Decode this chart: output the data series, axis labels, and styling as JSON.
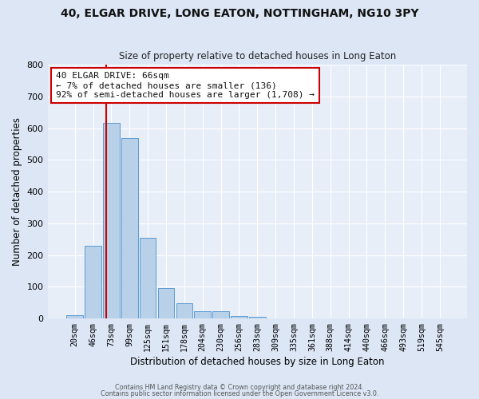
{
  "title": "40, ELGAR DRIVE, LONG EATON, NOTTINGHAM, NG10 3PY",
  "subtitle": "Size of property relative to detached houses in Long Eaton",
  "xlabel": "Distribution of detached houses by size in Long Eaton",
  "ylabel": "Number of detached properties",
  "bar_labels": [
    "20sqm",
    "46sqm",
    "73sqm",
    "99sqm",
    "125sqm",
    "151sqm",
    "178sqm",
    "204sqm",
    "230sqm",
    "256sqm",
    "283sqm",
    "309sqm",
    "335sqm",
    "361sqm",
    "388sqm",
    "414sqm",
    "440sqm",
    "466sqm",
    "493sqm",
    "519sqm",
    "545sqm"
  ],
  "bar_heights": [
    10,
    228,
    617,
    568,
    254,
    95,
    48,
    22,
    22,
    8,
    5,
    0,
    0,
    0,
    0,
    0,
    0,
    0,
    0,
    0,
    0
  ],
  "bar_color": "#b8d0e8",
  "bar_edge_color": "#5b9bd5",
  "bg_color": "#e8eef8",
  "grid_color": "#ffffff",
  "vline_color": "#cc0000",
  "vline_pos": 1.72,
  "annotation_text": "40 ELGAR DRIVE: 66sqm\n← 7% of detached houses are smaller (136)\n92% of semi-detached houses are larger (1,708) →",
  "annotation_box_color": "#ffffff",
  "annotation_box_edge": "#cc0000",
  "ylim": [
    0,
    800
  ],
  "yticks": [
    0,
    100,
    200,
    300,
    400,
    500,
    600,
    700,
    800
  ],
  "footer1": "Contains HM Land Registry data © Crown copyright and database right 2024.",
  "footer2": "Contains public sector information licensed under the Open Government Licence v3.0."
}
